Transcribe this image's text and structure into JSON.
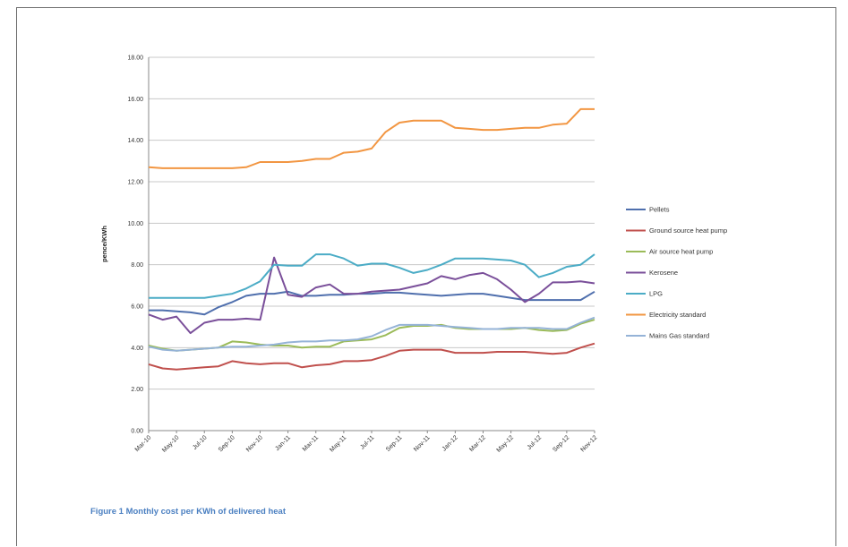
{
  "caption": "Figure 1 Monthly cost per KWh of delivered heat",
  "colors": {
    "pellets": "#4f6fad",
    "ground": "#c0504d",
    "air": "#9bbb59",
    "kerosene": "#7a4f9a",
    "lpg": "#4bacc6",
    "electricity": "#f29642",
    "mainsgas": "#95b3d7",
    "grid": "#c8c8c8",
    "axis": "#888888"
  },
  "chart_data": {
    "type": "line",
    "ylabel": "pence/KWh",
    "ylim": [
      0,
      18
    ],
    "yticks": [
      "0.00",
      "2.00",
      "4.00",
      "6.00",
      "8.00",
      "10.00",
      "12.00",
      "14.00",
      "16.00",
      "18.00"
    ],
    "x": [
      "Mar-10",
      "Apr-10",
      "May-10",
      "Jun-10",
      "Jul-10",
      "Aug-10",
      "Sep-10",
      "Oct-10",
      "Nov-10",
      "Dec-10",
      "Jan-11",
      "Feb-11",
      "Mar-11",
      "Apr-11",
      "May-11",
      "Jun-11",
      "Jul-11",
      "Aug-11",
      "Sep-11",
      "Oct-11",
      "Nov-11",
      "Dec-11",
      "Jan-12",
      "Feb-12",
      "Mar-12",
      "Apr-12",
      "May-12",
      "Jun-12",
      "Jul-12",
      "Aug-12",
      "Sep-12",
      "Oct-12",
      "Nov-12"
    ],
    "xticks": [
      "Mar-10",
      "May-10",
      "Jul-10",
      "Sep-10",
      "Nov-10",
      "Jan-11",
      "Mar-11",
      "May-11",
      "Jul-11",
      "Sep-11",
      "Nov-11",
      "Jan-12",
      "Mar-12",
      "May-12",
      "Jul-12",
      "Sep-12",
      "Nov-12"
    ],
    "series": [
      {
        "name": "Pellets",
        "key": "pellets",
        "values": [
          5.8,
          5.8,
          5.75,
          5.7,
          5.6,
          5.95,
          6.2,
          6.5,
          6.6,
          6.6,
          6.7,
          6.5,
          6.5,
          6.55,
          6.55,
          6.6,
          6.6,
          6.65,
          6.65,
          6.6,
          6.55,
          6.5,
          6.55,
          6.6,
          6.6,
          6.5,
          6.4,
          6.3,
          6.3,
          6.3,
          6.3,
          6.3,
          6.7
        ]
      },
      {
        "name": "Ground source heat pump",
        "key": "ground",
        "values": [
          3.2,
          3.0,
          2.95,
          3.0,
          3.05,
          3.1,
          3.35,
          3.25,
          3.2,
          3.25,
          3.25,
          3.05,
          3.15,
          3.2,
          3.35,
          3.35,
          3.4,
          3.6,
          3.85,
          3.9,
          3.9,
          3.9,
          3.75,
          3.75,
          3.75,
          3.8,
          3.8,
          3.8,
          3.75,
          3.7,
          3.75,
          4.0,
          4.2
        ]
      },
      {
        "name": "Air source heat pump",
        "key": "air",
        "values": [
          4.1,
          3.95,
          3.85,
          3.9,
          3.95,
          4.0,
          4.3,
          4.25,
          4.15,
          4.1,
          4.1,
          4.0,
          4.05,
          4.05,
          4.3,
          4.35,
          4.4,
          4.6,
          4.95,
          5.05,
          5.05,
          5.1,
          4.95,
          4.9,
          4.9,
          4.9,
          4.9,
          4.95,
          4.85,
          4.8,
          4.85,
          5.15,
          5.35
        ]
      },
      {
        "name": "Kerosene",
        "key": "kerosene",
        "values": [
          5.6,
          5.35,
          5.5,
          4.7,
          5.2,
          5.35,
          5.35,
          5.4,
          5.35,
          8.35,
          6.55,
          6.45,
          6.9,
          7.05,
          6.6,
          6.6,
          6.7,
          6.75,
          6.8,
          6.95,
          7.1,
          7.45,
          7.3,
          7.5,
          7.6,
          7.3,
          6.8,
          6.2,
          6.6,
          7.15,
          7.15,
          7.2,
          7.1
        ]
      },
      {
        "name": "LPG",
        "key": "lpg",
        "values": [
          6.4,
          6.4,
          6.4,
          6.4,
          6.4,
          6.5,
          6.6,
          6.85,
          7.2,
          8.0,
          7.95,
          7.95,
          8.5,
          8.5,
          8.3,
          7.95,
          8.05,
          8.05,
          7.85,
          7.6,
          7.75,
          8.0,
          8.3,
          8.3,
          8.3,
          8.25,
          8.2,
          8.0,
          7.4,
          7.6,
          7.9,
          8.0,
          8.5
        ]
      },
      {
        "name": "Electricity standard",
        "key": "electricity",
        "values": [
          12.7,
          12.65,
          12.65,
          12.65,
          12.65,
          12.65,
          12.65,
          12.7,
          12.95,
          12.95,
          12.95,
          13.0,
          13.1,
          13.1,
          13.4,
          13.45,
          13.6,
          14.4,
          14.85,
          14.95,
          14.95,
          14.95,
          14.6,
          14.55,
          14.5,
          14.5,
          14.55,
          14.6,
          14.6,
          14.75,
          14.8,
          15.5,
          15.5
        ]
      },
      {
        "name": "Mains Gas standard",
        "key": "mainsgas",
        "values": [
          4.05,
          3.9,
          3.85,
          3.9,
          3.95,
          4.0,
          4.05,
          4.05,
          4.1,
          4.15,
          4.25,
          4.3,
          4.3,
          4.35,
          4.35,
          4.4,
          4.55,
          4.85,
          5.1,
          5.1,
          5.1,
          5.05,
          5.0,
          4.95,
          4.9,
          4.9,
          4.95,
          4.95,
          4.95,
          4.9,
          4.9,
          5.2,
          5.45
        ]
      }
    ],
    "legend": "right",
    "grid": true
  }
}
